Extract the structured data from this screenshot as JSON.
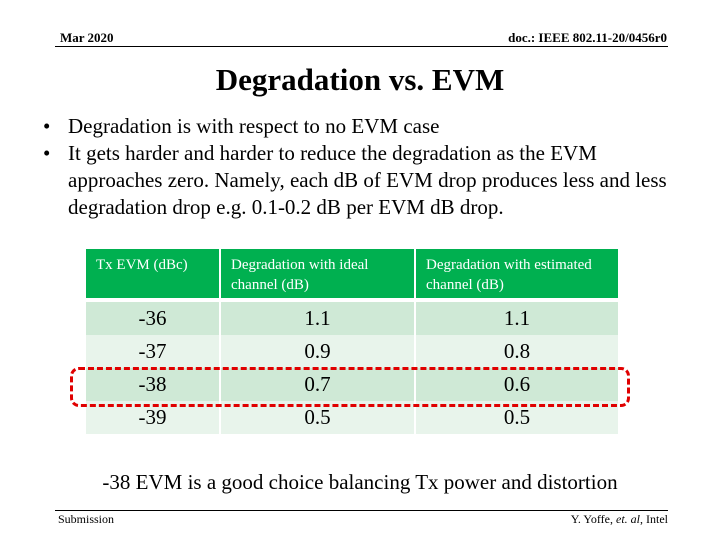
{
  "header": {
    "date": "Mar 2020",
    "doc_id": "doc.: IEEE 802.11-20/0456r0"
  },
  "title": "Degradation vs. EVM",
  "bullets": [
    "Degradation is with respect to no EVM case",
    "It gets harder and harder to reduce the degradation as the EVM approaches zero.  Namely, each dB of EVM drop produces less and less degradation drop e.g. 0.1-0.2 dB per EVM dB drop."
  ],
  "table": {
    "columns": [
      "Tx EVM (dBc)",
      "Degradation with ideal channel (dB)",
      "Degradation with estimated channel (dB)"
    ],
    "rows": [
      [
        "-36",
        "1.1",
        "1.1"
      ],
      [
        "-37",
        "0.9",
        "0.8"
      ],
      [
        "-38",
        "0.7",
        "0.6"
      ],
      [
        "-39",
        "0.5",
        "0.5"
      ]
    ]
  },
  "caption": "-38 EVM is a good choice balancing Tx power and distortion",
  "footer": {
    "left": "Submission",
    "right_prefix": "Y. Yoffe, ",
    "right_italic": "et. al",
    "right_suffix": ", Intel"
  },
  "colors": {
    "table_header": "#00b050",
    "row_odd": "#cfe9d6",
    "row_even": "#e8f4eb",
    "highlight": "#e00000"
  }
}
